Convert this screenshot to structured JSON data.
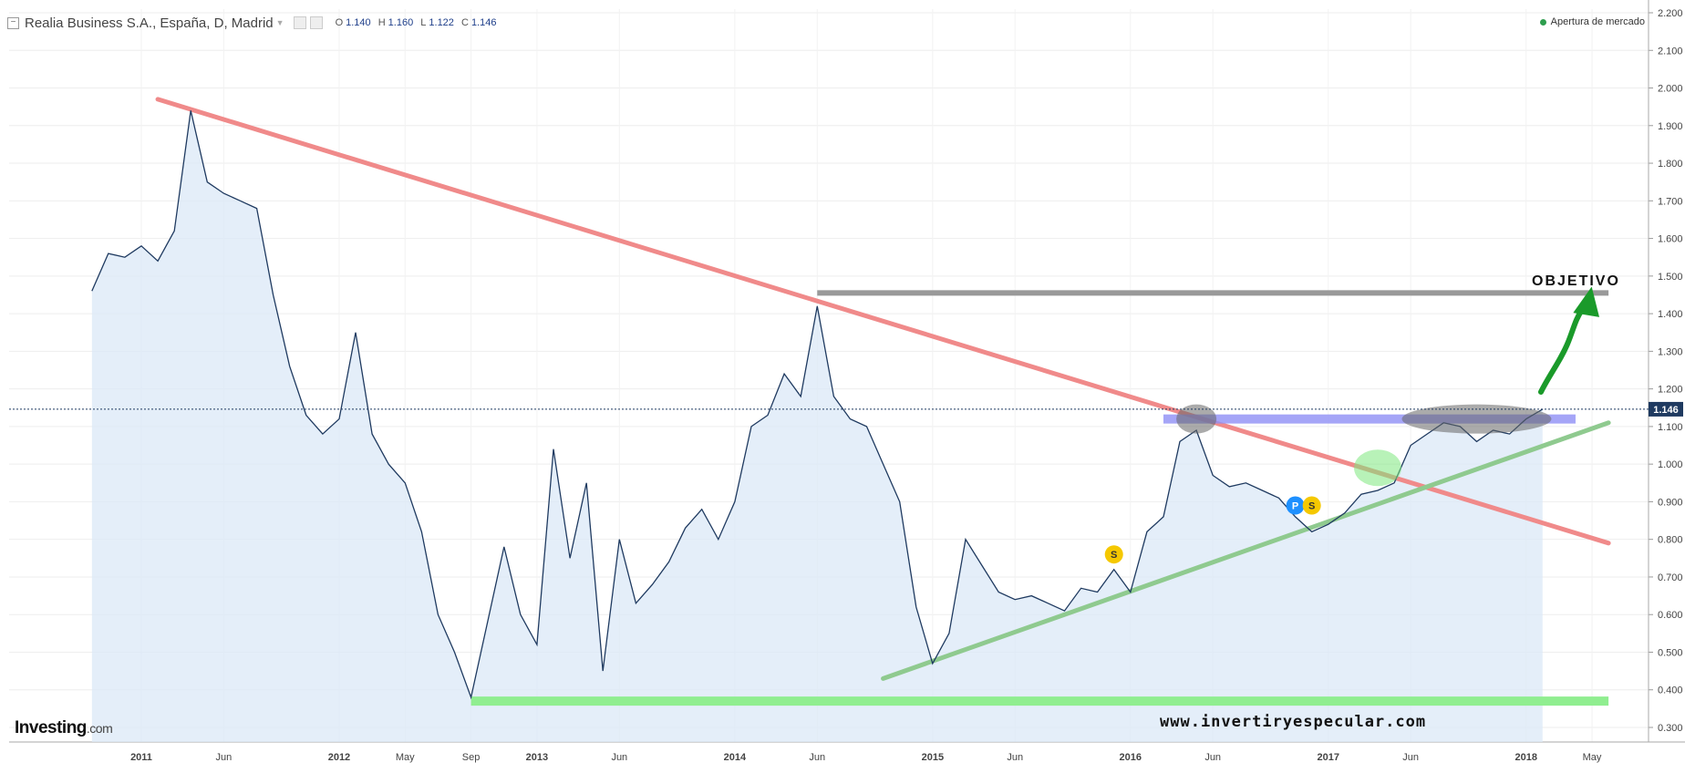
{
  "header": {
    "instrument": "Realia Business S.A., España, D, Madrid",
    "ohlc": [
      {
        "label": "O",
        "value": "1.140"
      },
      {
        "label": "H",
        "value": "1.160"
      },
      {
        "label": "L",
        "value": "1.122"
      },
      {
        "label": "C",
        "value": "1.146"
      }
    ]
  },
  "status": "Apertura de mercado",
  "brand": {
    "name": "Investing",
    "suffix": ".com"
  },
  "watermark": "www.invertiryespecular.com",
  "annotations": {
    "objective": "OBJETIVO"
  },
  "colors": {
    "price_line": "#1f3a60",
    "area_fill": "#dbe8f7",
    "downtrend": "#f08a8a",
    "uptrend": "#8fca8f",
    "support": "#90ee90",
    "resistance_band": "#8e8ef5",
    "target_line": "#999999",
    "arrow": "#1a9a2a",
    "current_price_tag": "#1f3a60",
    "status_dot": "#2e9e4e"
  },
  "chart_data": {
    "type": "line",
    "title": "Realia Business S.A., España, D, Madrid",
    "xlabel": "",
    "ylabel": "",
    "ylim": [
      0.25,
      2.2
    ],
    "x_ticks": [
      "2011",
      "Jun",
      "2012",
      "May",
      "Sep",
      "2013",
      "Jun",
      "2014",
      "Jun",
      "2015",
      "Jun",
      "2016",
      "Jun",
      "2017",
      "Jun",
      "2018",
      "May"
    ],
    "y_ticks": [
      "0.300",
      "0.400",
      "0.500",
      "0.600",
      "0.700",
      "0.800",
      "0.900",
      "1.000",
      "1.100",
      "1.200",
      "1.300",
      "1.400",
      "1.500",
      "1.600",
      "1.700",
      "1.800",
      "1.900",
      "2.000",
      "2.100",
      "2.200"
    ],
    "grid": true,
    "current_price": "1.146",
    "series": [
      {
        "values": [
          {
            "x": "2010-10",
            "y": 1.46
          },
          {
            "x": "2010-11",
            "y": 1.56
          },
          {
            "x": "2010-12",
            "y": 1.55
          },
          {
            "x": "2011-01",
            "y": 1.58
          },
          {
            "x": "2011-02",
            "y": 1.54
          },
          {
            "x": "2011-03",
            "y": 1.62
          },
          {
            "x": "2011-04",
            "y": 1.94
          },
          {
            "x": "2011-05",
            "y": 1.75
          },
          {
            "x": "2011-06",
            "y": 1.72
          },
          {
            "x": "2011-07",
            "y": 1.7
          },
          {
            "x": "2011-08",
            "y": 1.68
          },
          {
            "x": "2011-09",
            "y": 1.45
          },
          {
            "x": "2011-10",
            "y": 1.26
          },
          {
            "x": "2011-11",
            "y": 1.13
          },
          {
            "x": "2011-12",
            "y": 1.08
          },
          {
            "x": "2012-01",
            "y": 1.12
          },
          {
            "x": "2012-02",
            "y": 1.35
          },
          {
            "x": "2012-03",
            "y": 1.08
          },
          {
            "x": "2012-04",
            "y": 1.0
          },
          {
            "x": "2012-05",
            "y": 0.95
          },
          {
            "x": "2012-06",
            "y": 0.82
          },
          {
            "x": "2012-07",
            "y": 0.6
          },
          {
            "x": "2012-08",
            "y": 0.5
          },
          {
            "x": "2012-09",
            "y": 0.38
          },
          {
            "x": "2012-10",
            "y": 0.58
          },
          {
            "x": "2012-11",
            "y": 0.78
          },
          {
            "x": "2012-12",
            "y": 0.6
          },
          {
            "x": "2013-01",
            "y": 0.52
          },
          {
            "x": "2013-02",
            "y": 1.04
          },
          {
            "x": "2013-03",
            "y": 0.75
          },
          {
            "x": "2013-04",
            "y": 0.95
          },
          {
            "x": "2013-05",
            "y": 0.45
          },
          {
            "x": "2013-06",
            "y": 0.8
          },
          {
            "x": "2013-07",
            "y": 0.63
          },
          {
            "x": "2013-08",
            "y": 0.68
          },
          {
            "x": "2013-09",
            "y": 0.74
          },
          {
            "x": "2013-10",
            "y": 0.83
          },
          {
            "x": "2013-11",
            "y": 0.88
          },
          {
            "x": "2013-12",
            "y": 0.8
          },
          {
            "x": "2014-01",
            "y": 0.9
          },
          {
            "x": "2014-02",
            "y": 1.1
          },
          {
            "x": "2014-03",
            "y": 1.13
          },
          {
            "x": "2014-04",
            "y": 1.24
          },
          {
            "x": "2014-05",
            "y": 1.18
          },
          {
            "x": "2014-06",
            "y": 1.42
          },
          {
            "x": "2014-07",
            "y": 1.18
          },
          {
            "x": "2014-08",
            "y": 1.12
          },
          {
            "x": "2014-09",
            "y": 1.1
          },
          {
            "x": "2014-10",
            "y": 1.0
          },
          {
            "x": "2014-11",
            "y": 0.9
          },
          {
            "x": "2014-12",
            "y": 0.62
          },
          {
            "x": "2015-01",
            "y": 0.47
          },
          {
            "x": "2015-02",
            "y": 0.55
          },
          {
            "x": "2015-03",
            "y": 0.8
          },
          {
            "x": "2015-04",
            "y": 0.73
          },
          {
            "x": "2015-05",
            "y": 0.66
          },
          {
            "x": "2015-06",
            "y": 0.64
          },
          {
            "x": "2015-07",
            "y": 0.65
          },
          {
            "x": "2015-08",
            "y": 0.63
          },
          {
            "x": "2015-09",
            "y": 0.61
          },
          {
            "x": "2015-10",
            "y": 0.67
          },
          {
            "x": "2015-11",
            "y": 0.66
          },
          {
            "x": "2015-12",
            "y": 0.72
          },
          {
            "x": "2016-01",
            "y": 0.66
          },
          {
            "x": "2016-02",
            "y": 0.82
          },
          {
            "x": "2016-03",
            "y": 0.86
          },
          {
            "x": "2016-04",
            "y": 1.06
          },
          {
            "x": "2016-05",
            "y": 1.09
          },
          {
            "x": "2016-06",
            "y": 0.97
          },
          {
            "x": "2016-07",
            "y": 0.94
          },
          {
            "x": "2016-08",
            "y": 0.95
          },
          {
            "x": "2016-09",
            "y": 0.93
          },
          {
            "x": "2016-10",
            "y": 0.91
          },
          {
            "x": "2016-11",
            "y": 0.86
          },
          {
            "x": "2016-12",
            "y": 0.82
          },
          {
            "x": "2017-01",
            "y": 0.84
          },
          {
            "x": "2017-02",
            "y": 0.87
          },
          {
            "x": "2017-03",
            "y": 0.92
          },
          {
            "x": "2017-04",
            "y": 0.93
          },
          {
            "x": "2017-05",
            "y": 0.95
          },
          {
            "x": "2017-06",
            "y": 1.05
          },
          {
            "x": "2017-07",
            "y": 1.08
          },
          {
            "x": "2017-08",
            "y": 1.11
          },
          {
            "x": "2017-09",
            "y": 1.1
          },
          {
            "x": "2017-10",
            "y": 1.06
          },
          {
            "x": "2017-11",
            "y": 1.09
          },
          {
            "x": "2017-12",
            "y": 1.08
          },
          {
            "x": "2018-01",
            "y": 1.12
          },
          {
            "x": "2018-02",
            "y": 1.146
          }
        ]
      }
    ],
    "overlays": [
      {
        "kind": "trendline",
        "name": "downtrend",
        "from": {
          "x": "2011-02",
          "y": 1.97
        },
        "to": {
          "x": "2018-06",
          "y": 0.79
        }
      },
      {
        "kind": "trendline",
        "name": "uptrend",
        "from": {
          "x": "2014-10",
          "y": 0.43
        },
        "to": {
          "x": "2018-06",
          "y": 1.11
        }
      },
      {
        "kind": "horizontal",
        "name": "support",
        "from_x": "2012-09",
        "to_x": "2018-06",
        "y": 0.37
      },
      {
        "kind": "horizontal",
        "name": "target",
        "from_x": "2014-06",
        "to_x": "2018-06",
        "y": 1.455
      },
      {
        "kind": "band",
        "name": "resistance",
        "from_x": "2016-03",
        "to_x": "2018-04",
        "y": 1.12
      }
    ],
    "markers": [
      {
        "label": "S",
        "x": "2015-12",
        "y": 0.76,
        "color": "#f5c800"
      },
      {
        "label": "P",
        "x": "2016-11",
        "y": 0.89,
        "color": "#1e90ff"
      },
      {
        "label": "S",
        "x": "2016-12",
        "y": 0.89,
        "color": "#f5c800"
      }
    ],
    "highlights": [
      {
        "x": "2016-05",
        "y": 1.12,
        "color": "#666666"
      },
      {
        "x": "2017-10",
        "y": 1.12,
        "color": "#666666"
      },
      {
        "x": "2017-04",
        "y": 0.99,
        "color": "#7ee87e"
      }
    ]
  }
}
